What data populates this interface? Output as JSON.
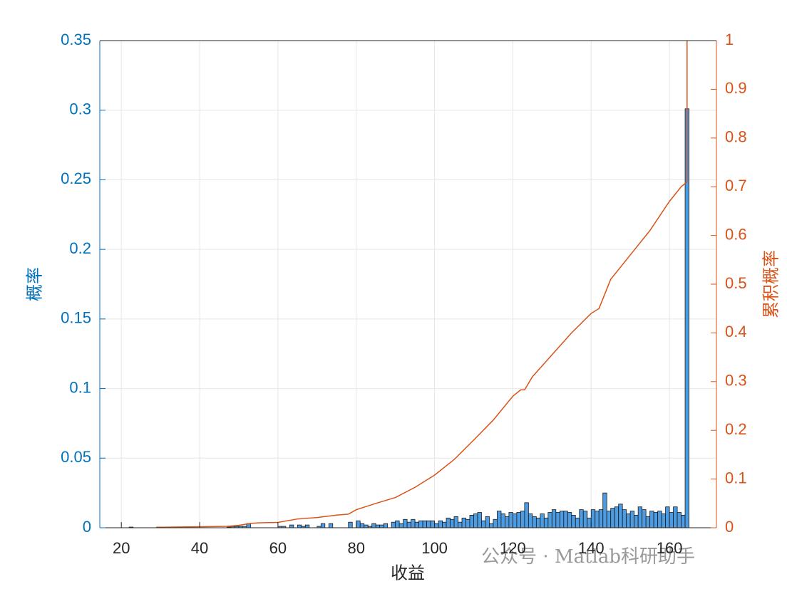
{
  "chart_data": {
    "type": "histogram",
    "xlabel": "收益",
    "ylabel": "概率",
    "y2label": "累积概率",
    "watermark": "公众号 · Matlab科研助手",
    "xlim": [
      14.5,
      172
    ],
    "xticks": [
      20,
      40,
      60,
      80,
      100,
      120,
      140,
      160
    ],
    "ylim": [
      0,
      0.35
    ],
    "yticks": [
      0,
      0.05,
      0.1,
      0.15,
      0.2,
      0.25,
      0.3,
      0.35
    ],
    "y2lim": [
      0,
      1
    ],
    "y2ticks": [
      0,
      0.1,
      0.2,
      0.3,
      0.4,
      0.5,
      0.6,
      0.7,
      0.8,
      0.9,
      1
    ],
    "grid": true,
    "bins": [
      20,
      21,
      22,
      23,
      24,
      25,
      26,
      27,
      28,
      29,
      30,
      31,
      32,
      33,
      34,
      35,
      36,
      37,
      38,
      39,
      40,
      41,
      42,
      43,
      44,
      45,
      46,
      47,
      48,
      49,
      50,
      51,
      52,
      53,
      54,
      55,
      56,
      57,
      58,
      59,
      60,
      61,
      62,
      63,
      64,
      65,
      66,
      67,
      68,
      69,
      70,
      71,
      72,
      73,
      74,
      75,
      76,
      77,
      78,
      79,
      80,
      81,
      82,
      83,
      84,
      85,
      86,
      87,
      88,
      89,
      90,
      91,
      92,
      93,
      94,
      95,
      96,
      97,
      98,
      99,
      100,
      101,
      102,
      103,
      104,
      105,
      106,
      107,
      108,
      109,
      110,
      111,
      112,
      113,
      114,
      115,
      116,
      117,
      118,
      119,
      120,
      121,
      122,
      123,
      124,
      125,
      126,
      127,
      128,
      129,
      130,
      131,
      132,
      133,
      134,
      135,
      136,
      137,
      138,
      139,
      140,
      141,
      142,
      143,
      144,
      145,
      146,
      147,
      148,
      149,
      150,
      151,
      152,
      153,
      154,
      155,
      156,
      157,
      158,
      159,
      160,
      161,
      162,
      163,
      164,
      165
    ],
    "values": [
      0,
      0,
      0.0005,
      0,
      0,
      0,
      0,
      0,
      0,
      0.0005,
      0,
      0,
      0,
      0,
      0,
      0,
      0,
      0,
      0,
      0,
      0,
      0,
      0,
      0,
      0,
      0,
      0,
      0.0005,
      0.001,
      0.001,
      0.001,
      0.001,
      0.003,
      0,
      0,
      0,
      0,
      0,
      0,
      0,
      0.001,
      0.001,
      0,
      0.002,
      0,
      0.002,
      0.001,
      0.002,
      0,
      0,
      0.001,
      0.003,
      0,
      0.003,
      0,
      0,
      0,
      0,
      0.004,
      0,
      0.005,
      0.003,
      0.002,
      0.001,
      0.003,
      0.002,
      0.002,
      0.003,
      0,
      0.004,
      0.005,
      0.003,
      0.006,
      0.004,
      0.006,
      0.004,
      0.005,
      0.005,
      0.005,
      0.005,
      0.003,
      0.005,
      0.004,
      0.007,
      0.006,
      0.008,
      0.004,
      0.007,
      0.006,
      0.009,
      0.01,
      0.011,
      0.005,
      0.008,
      0.003,
      0.006,
      0.012,
      0.01,
      0.008,
      0.011,
      0.01,
      0.011,
      0.012,
      0.018,
      0.01,
      0.008,
      0.007,
      0.01,
      0.007,
      0.011,
      0.013,
      0.011,
      0.012,
      0.012,
      0.011,
      0.009,
      0.007,
      0.013,
      0.012,
      0.007,
      0.013,
      0.012,
      0.013,
      0.025,
      0.012,
      0.014,
      0.015,
      0.017,
      0.013,
      0.01,
      0.012,
      0.009,
      0.015,
      0.013,
      0.008,
      0.012,
      0.011,
      0.012,
      0.01,
      0.015,
      0.011,
      0.015,
      0.011,
      0.009,
      0.301
    ],
    "color": "#4d9be0",
    "edgecolor": "#1a1a1a",
    "series": [
      {
        "type": "line",
        "axis": "y2",
        "color": "#d95319",
        "x": [
          29,
          40,
          47,
          50,
          53,
          55,
          60,
          65,
          70,
          75,
          78,
          80,
          85,
          90,
          95,
          100,
          105,
          110,
          115,
          120,
          122,
          123,
          125,
          130,
          135,
          140,
          142,
          145,
          150,
          155,
          160,
          163,
          164.5,
          164.5
        ],
        "values": [
          0.001,
          0.002,
          0.003,
          0.005,
          0.009,
          0.01,
          0.011,
          0.018,
          0.021,
          0.026,
          0.028,
          0.037,
          0.05,
          0.062,
          0.083,
          0.108,
          0.14,
          0.18,
          0.221,
          0.27,
          0.283,
          0.283,
          0.31,
          0.355,
          0.4,
          0.44,
          0.45,
          0.51,
          0.56,
          0.61,
          0.67,
          0.7,
          0.71,
          1
        ]
      }
    ]
  }
}
